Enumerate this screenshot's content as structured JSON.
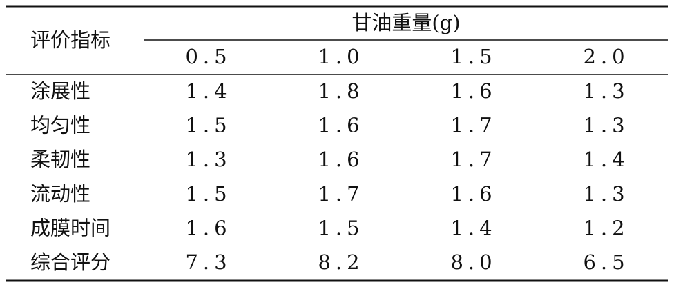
{
  "table": {
    "corner": "评价指标",
    "group_header": "甘油重量(g)",
    "columns": [
      "0.5",
      "1.0",
      "1.5",
      "2.0"
    ],
    "rows": [
      [
        "涂展性",
        "1.4",
        "1.8",
        "1.6",
        "1.3"
      ],
      [
        "均匀性",
        "1.5",
        "1.6",
        "1.7",
        "1.3"
      ],
      [
        "柔韧性",
        "1.3",
        "1.6",
        "1.7",
        "1.4"
      ],
      [
        "流动性",
        "1.5",
        "1.7",
        "1.6",
        "1.3"
      ],
      [
        "成膜时间",
        "1.6",
        "1.5",
        "1.4",
        "1.2"
      ],
      [
        "综合评分",
        "7.3",
        "8.2",
        "8.0",
        "6.5"
      ]
    ]
  }
}
